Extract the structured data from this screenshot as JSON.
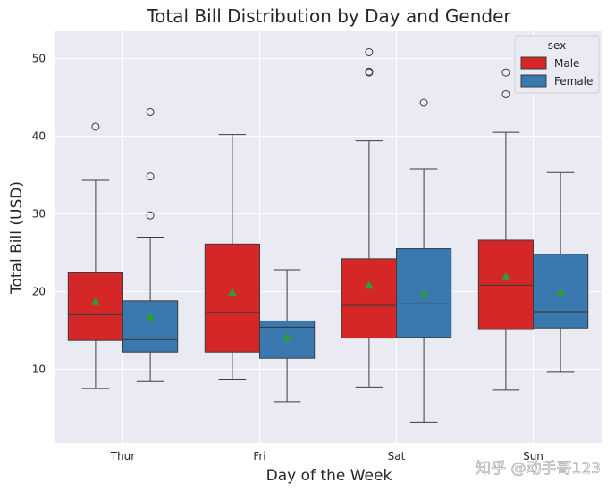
{
  "chart_data": {
    "type": "box",
    "title": "Total Bill Distribution by Day and Gender",
    "xlabel": "Day of the Week",
    "ylabel": "Total Bill (USD)",
    "categories": [
      "Thur",
      "Fri",
      "Sat",
      "Sun"
    ],
    "ylim": [
      0.5,
      53.5
    ],
    "yticks": [
      10,
      20,
      30,
      40,
      50
    ],
    "grid": true,
    "legend": {
      "title": "sex",
      "placement": "top-right"
    },
    "series": [
      {
        "name": "Male",
        "color": "#d62728",
        "boxes": [
          {
            "category": "Thur",
            "whisker_low": 7.5,
            "q1": 13.7,
            "median": 17.0,
            "q3": 22.4,
            "whisker_high": 34.3,
            "mean": 18.7,
            "outliers": [
              41.2
            ]
          },
          {
            "category": "Fri",
            "whisker_low": 8.6,
            "q1": 12.2,
            "median": 17.3,
            "q3": 26.1,
            "whisker_high": 40.2,
            "mean": 19.9,
            "outliers": []
          },
          {
            "category": "Sat",
            "whisker_low": 7.7,
            "q1": 14.0,
            "median": 18.2,
            "q3": 24.2,
            "whisker_high": 39.4,
            "mean": 20.8,
            "outliers": [
              50.8,
              48.3,
              48.2
            ]
          },
          {
            "category": "Sun",
            "whisker_low": 7.3,
            "q1": 15.1,
            "median": 20.8,
            "q3": 26.6,
            "whisker_high": 40.5,
            "mean": 21.9,
            "outliers": [
              48.2,
              45.4
            ]
          }
        ]
      },
      {
        "name": "Female",
        "color": "#3a78b0",
        "boxes": [
          {
            "category": "Thur",
            "whisker_low": 8.4,
            "q1": 12.2,
            "median": 13.8,
            "q3": 18.8,
            "whisker_high": 27.0,
            "mean": 16.7,
            "outliers": [
              43.1,
              34.8,
              29.8
            ]
          },
          {
            "category": "Fri",
            "whisker_low": 5.8,
            "q1": 11.4,
            "median": 15.4,
            "q3": 16.2,
            "whisker_high": 22.8,
            "mean": 14.1,
            "outliers": []
          },
          {
            "category": "Sat",
            "whisker_low": 3.1,
            "q1": 14.1,
            "median": 18.4,
            "q3": 25.5,
            "whisker_high": 35.8,
            "mean": 19.7,
            "outliers": [
              44.3
            ]
          },
          {
            "category": "Sun",
            "whisker_low": 9.6,
            "q1": 15.3,
            "median": 17.4,
            "q3": 24.8,
            "whisker_high": 35.3,
            "mean": 19.9,
            "outliers": []
          }
        ]
      }
    ],
    "watermark": "知乎 @动手哥123"
  }
}
